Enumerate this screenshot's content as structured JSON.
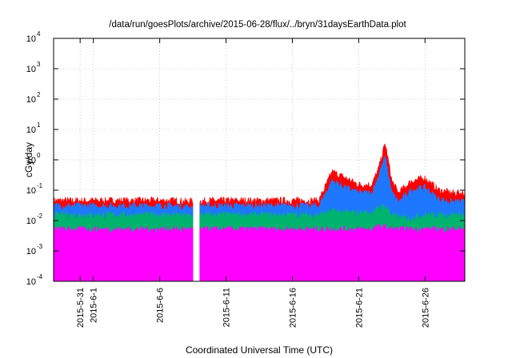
{
  "chart_data": {
    "type": "line",
    "title": "/data/run/goesPlots/archive/2015-06-28/flux/../bryn/31daysEarthData.plot",
    "xlabel": "Coordinated Universal Time (UTC)",
    "ylabel": "cGy/day",
    "yscale": "log",
    "ylim": [
      0.0001,
      10000
    ],
    "xlim": [
      "2015-05-29",
      "2015-06-29"
    ],
    "grid": true,
    "y_ticks": [
      {
        "base": "10",
        "exp": "-4",
        "value": 0.0001
      },
      {
        "base": "10",
        "exp": "-3",
        "value": 0.001
      },
      {
        "base": "10",
        "exp": "-2",
        "value": 0.01
      },
      {
        "base": "10",
        "exp": "-1",
        "value": 0.1
      },
      {
        "base": "10",
        "exp": "0",
        "value": 1
      },
      {
        "base": "10",
        "exp": "1",
        "value": 10
      },
      {
        "base": "10",
        "exp": "2",
        "value": 100
      },
      {
        "base": "10",
        "exp": "3",
        "value": 1000
      },
      {
        "base": "10",
        "exp": "4",
        "value": 10000
      }
    ],
    "x_ticks": [
      {
        "label": "2015-5-31",
        "date": "2015-05-31"
      },
      {
        "label": "2015-6-1",
        "date": "2015-06-01"
      },
      {
        "label": "2015-6-6",
        "date": "2015-06-06"
      },
      {
        "label": "2015-6-11",
        "date": "2015-06-11"
      },
      {
        "label": "2015-6-16",
        "date": "2015-06-16"
      },
      {
        "label": "2015-6-21",
        "date": "2015-06-21"
      },
      {
        "label": "2015-6-26",
        "date": "2015-06-26"
      }
    ],
    "series": [
      {
        "color": "#ff0000",
        "x": [
          "2015-05-29",
          "2015-06-01",
          "2015-06-04",
          "2015-06-07",
          "2015-06-08",
          "2015-06-10",
          "2015-06-13",
          "2015-06-16",
          "2015-06-18",
          "2015-06-19",
          "2015-06-20",
          "2015-06-21",
          "2015-06-22",
          "2015-06-22 12:00",
          "2015-06-23",
          "2015-06-23 12:00",
          "2015-06-24",
          "2015-06-25",
          "2015-06-26",
          "2015-06-27",
          "2015-06-28",
          "2015-06-29"
        ],
        "y": [
          0.045,
          0.045,
          0.045,
          0.045,
          0.042,
          0.045,
          0.045,
          0.045,
          0.045,
          0.4,
          0.25,
          0.15,
          0.15,
          0.5,
          3.5,
          0.2,
          0.08,
          0.2,
          0.25,
          0.1,
          0.08,
          0.08
        ]
      },
      {
        "color": "#1e78ff",
        "x": [
          "2015-05-29",
          "2015-06-01",
          "2015-06-04",
          "2015-06-07",
          "2015-06-08",
          "2015-06-10",
          "2015-06-13",
          "2015-06-16",
          "2015-06-18",
          "2015-06-19",
          "2015-06-20",
          "2015-06-21",
          "2015-06-22",
          "2015-06-22 12:00",
          "2015-06-23",
          "2015-06-23 12:00",
          "2015-06-24",
          "2015-06-25",
          "2015-06-26",
          "2015-06-27",
          "2015-06-28",
          "2015-06-29"
        ],
        "y": [
          0.03,
          0.03,
          0.03,
          0.03,
          0.028,
          0.03,
          0.03,
          0.03,
          0.03,
          0.2,
          0.12,
          0.08,
          0.08,
          0.3,
          1.2,
          0.08,
          0.04,
          0.1,
          0.12,
          0.05,
          0.04,
          0.04
        ]
      },
      {
        "color": "#00b46e",
        "x": [
          "2015-05-29",
          "2015-06-01",
          "2015-06-04",
          "2015-06-07",
          "2015-06-08",
          "2015-06-10",
          "2015-06-13",
          "2015-06-16",
          "2015-06-18",
          "2015-06-19",
          "2015-06-20",
          "2015-06-21",
          "2015-06-22",
          "2015-06-22 12:00",
          "2015-06-23",
          "2015-06-23 12:00",
          "2015-06-24",
          "2015-06-25",
          "2015-06-26",
          "2015-06-27",
          "2015-06-28",
          "2015-06-29"
        ],
        "y": [
          0.015,
          0.015,
          0.015,
          0.015,
          0.014,
          0.015,
          0.015,
          0.015,
          0.015,
          0.02,
          0.018,
          0.017,
          0.018,
          0.025,
          0.03,
          0.015,
          0.012,
          0.012,
          0.015,
          0.015,
          0.015,
          0.015
        ]
      },
      {
        "color": "#ff00ff",
        "x": [
          "2015-05-29",
          "2015-06-01",
          "2015-06-04",
          "2015-06-07",
          "2015-06-08",
          "2015-06-10",
          "2015-06-13",
          "2015-06-16",
          "2015-06-18",
          "2015-06-19",
          "2015-06-20",
          "2015-06-21",
          "2015-06-22",
          "2015-06-22 12:00",
          "2015-06-23",
          "2015-06-23 12:00",
          "2015-06-24",
          "2015-06-25",
          "2015-06-26",
          "2015-06-27",
          "2015-06-28",
          "2015-06-29"
        ],
        "y": [
          0.005,
          0.005,
          0.005,
          0.005,
          0.005,
          0.005,
          0.005,
          0.005,
          0.005,
          0.005,
          0.005,
          0.005,
          0.005,
          0.006,
          0.006,
          0.005,
          0.005,
          0.005,
          0.005,
          0.005,
          0.005,
          0.005
        ]
      }
    ],
    "data_gap": [
      "2015-06-08 12:00",
      "2015-06-09"
    ],
    "dropouts": [
      "2015-06-01 06:00",
      "2015-06-04 12:00",
      "2015-06-09 06:00",
      "2015-06-10 06:00",
      "2015-06-11 12:00",
      "2015-06-14 06:00",
      "2015-06-17 18:00",
      "2015-06-18 18:00",
      "2015-06-21 18:00",
      "2015-06-25 18:00"
    ]
  }
}
